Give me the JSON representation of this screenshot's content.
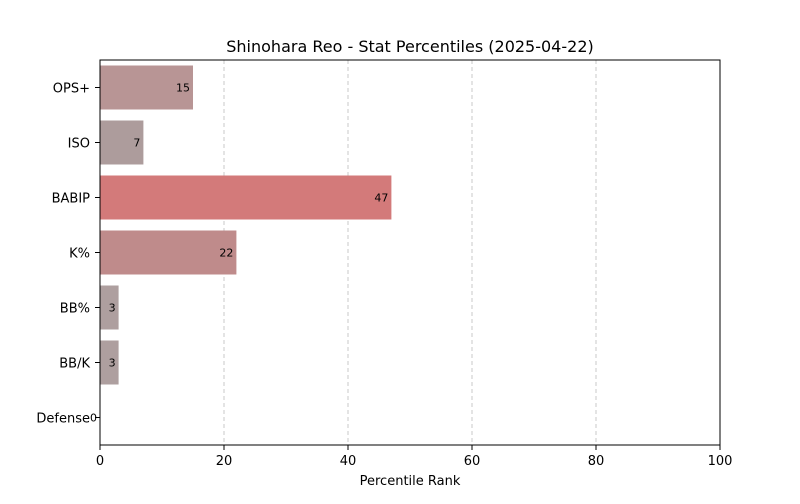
{
  "chart_data": {
    "type": "bar",
    "orientation": "horizontal",
    "title": "Shinohara Reo - Stat Percentiles (2025-04-22)",
    "xlabel": "Percentile Rank",
    "ylabel": "",
    "xlim": [
      0,
      100
    ],
    "xticks": [
      0,
      20,
      40,
      60,
      80,
      100
    ],
    "grid": {
      "x": true,
      "y": false,
      "style": "dashed"
    },
    "categories": [
      "OPS+",
      "ISO",
      "BABIP",
      "K%",
      "BB%",
      "BB/K",
      "Defense"
    ],
    "values": [
      15,
      7,
      47,
      22,
      3,
      3,
      0
    ],
    "bar_colors": [
      "#b89595",
      "#ad9c9c",
      "#d37a7a",
      "#bf8b8b",
      "#ae9f9f",
      "#ae9f9f",
      "#aaaaaa"
    ]
  }
}
